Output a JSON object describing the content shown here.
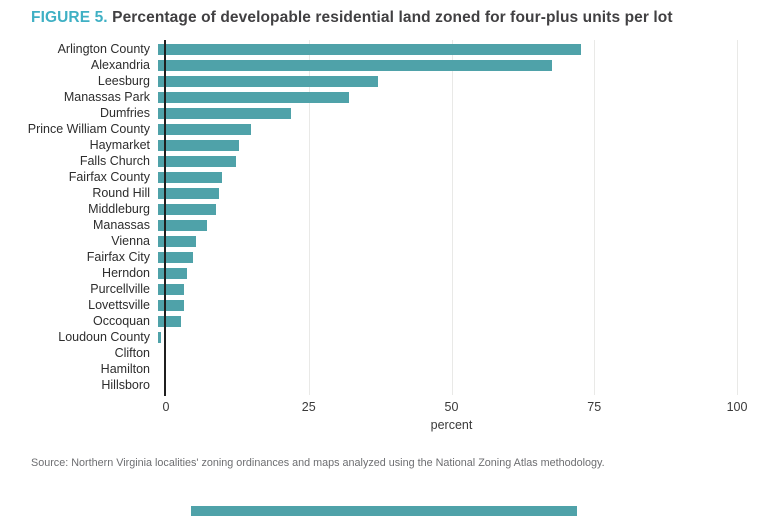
{
  "title": {
    "figure_label": "FIGURE 5.",
    "text": "Percentage of developable residential land zoned for four-plus units per lot"
  },
  "source": "Source: Northern Virginia localities' zoning ordinances and maps analyzed using the National Zoning Atlas methodology.",
  "colors": {
    "bar": "#4fa2a9",
    "figure_label": "#3fb0c4",
    "title_text": "#414042",
    "gridline": "#e9e9e7",
    "axis_line": "#1f1f1f",
    "accent_bar": "#4fa2a9"
  },
  "chart_data": {
    "type": "bar",
    "orientation": "horizontal",
    "title": "FIGURE 5. Percentage of developable residential land zoned for four-plus units per lot",
    "categories": [
      "Arlington County",
      "Alexandria",
      "Leesburg",
      "Manassas Park",
      "Dumfries",
      "Prince William County",
      "Haymarket",
      "Falls Church",
      "Fairfax County",
      "Round Hill",
      "Middleburg",
      "Manassas",
      "Vienna",
      "Fairfax City",
      "Herndon",
      "Purcellville",
      "Lovettsville",
      "Occoquan",
      "Loudoun County",
      "Clifton",
      "Hamilton",
      "Hillsboro"
    ],
    "values": [
      73,
      68,
      38,
      33,
      23,
      16,
      14,
      13.5,
      11,
      10.5,
      10,
      8.5,
      6.5,
      6,
      5,
      4.5,
      4.5,
      4,
      0.5,
      0,
      0,
      0
    ],
    "xlabel": "percent",
    "xlim": [
      0,
      100
    ],
    "xticks": [
      0,
      25,
      50,
      75,
      100
    ],
    "grid": "vertical gridlines at x ticks",
    "legend": "none"
  }
}
